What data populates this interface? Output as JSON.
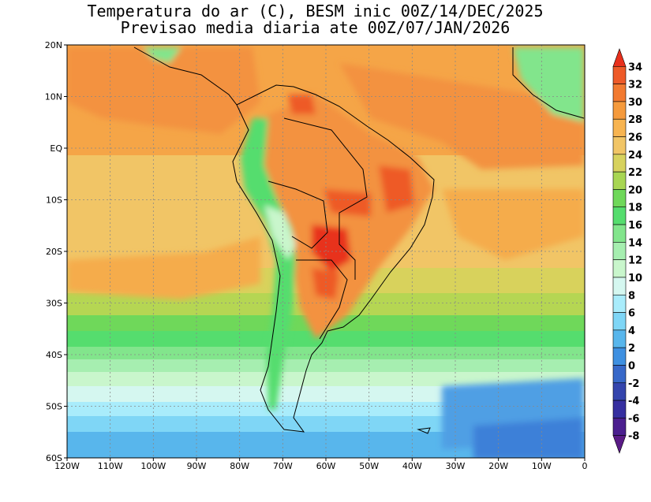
{
  "title": {
    "line1": "Temperatura do ar (C), BESM inic 00Z/14/DEC/2025",
    "line2": "Previsao media diaria ate 00Z/07/JAN/2026"
  },
  "map": {
    "lat_labels": [
      "20N",
      "10N",
      "EQ",
      "10S",
      "20S",
      "30S",
      "40S",
      "50S",
      "60S"
    ],
    "lon_labels": [
      "120W",
      "110W",
      "100W",
      "90W",
      "80W",
      "70W",
      "60W",
      "50W",
      "40W",
      "30W",
      "20W",
      "10W",
      "0"
    ]
  },
  "colorbar": {
    "labels": [
      "34",
      "32",
      "30",
      "28",
      "26",
      "24",
      "22",
      "20",
      "18",
      "16",
      "14",
      "12",
      "10",
      "8",
      "6",
      "4",
      "2",
      "0",
      "-2",
      "-4",
      "-6",
      "-8"
    ],
    "colors": [
      "#e8301c",
      "#ee5a28",
      "#f27a30",
      "#f59a3c",
      "#f7b451",
      "#f1c566",
      "#d7d25e",
      "#a8d653",
      "#6fd85a",
      "#55dd6e",
      "#82e58c",
      "#a6eeb0",
      "#c9f6cc",
      "#d5f7f0",
      "#a9ecfb",
      "#7fd6f6",
      "#58b6ec",
      "#3e90e1",
      "#3768c9",
      "#3445ad",
      "#362fa0",
      "#4b1f8f",
      "#5a1b86"
    ]
  }
}
